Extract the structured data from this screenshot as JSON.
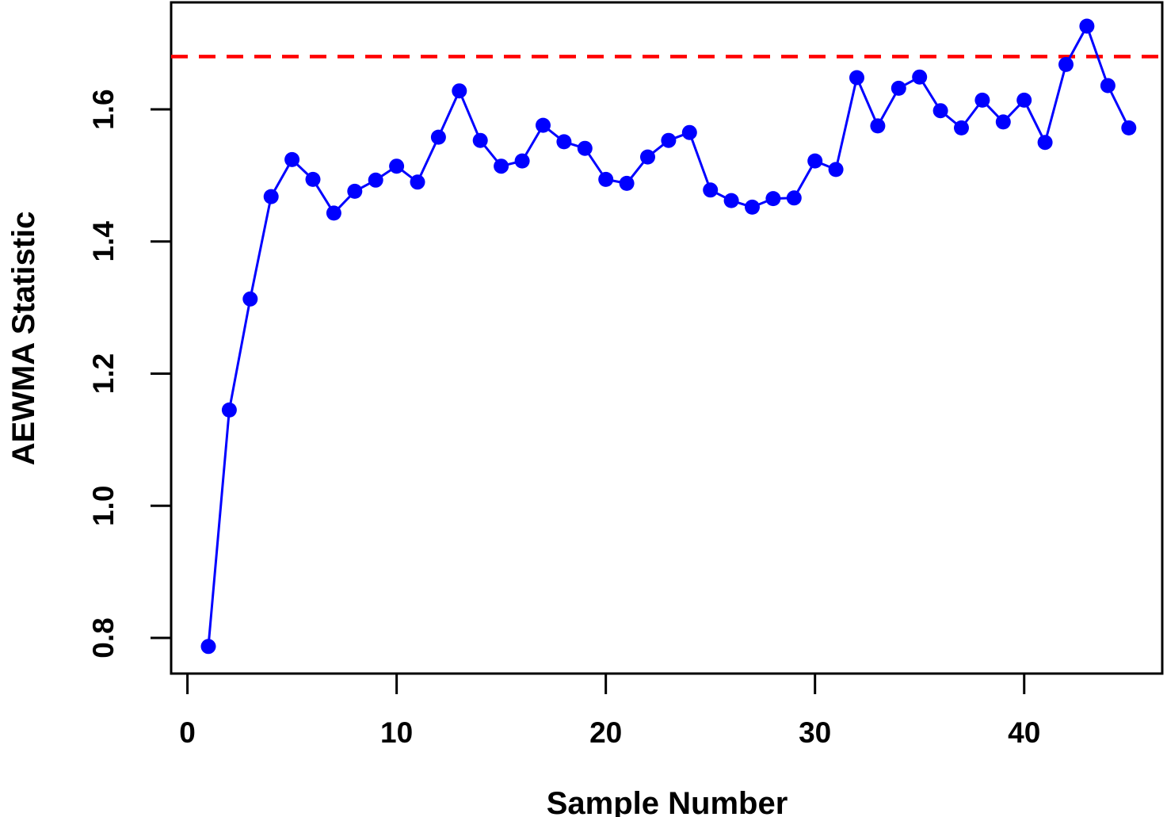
{
  "chart_data": {
    "type": "line",
    "title": "",
    "xlabel": "Sample Number",
    "ylabel": "AEWMA Statistic",
    "x": [
      1,
      2,
      3,
      4,
      5,
      6,
      7,
      8,
      9,
      10,
      11,
      12,
      13,
      14,
      15,
      16,
      17,
      18,
      19,
      20,
      21,
      22,
      23,
      24,
      25,
      26,
      27,
      28,
      29,
      30,
      31,
      32,
      33,
      34,
      35,
      36,
      37,
      38,
      39,
      40,
      41,
      42,
      43,
      44,
      45
    ],
    "series": [
      {
        "name": "AEWMA statistic",
        "values": [
          0.787,
          1.145,
          1.313,
          1.468,
          1.524,
          1.494,
          1.443,
          1.476,
          1.493,
          1.514,
          1.49,
          1.558,
          1.628,
          1.553,
          1.514,
          1.522,
          1.576,
          1.551,
          1.541,
          1.494,
          1.488,
          1.528,
          1.553,
          1.565,
          1.478,
          1.462,
          1.452,
          1.465,
          1.466,
          1.522,
          1.509,
          1.648,
          1.575,
          1.632,
          1.649,
          1.598,
          1.572,
          1.614,
          1.581,
          1.614,
          1.55,
          1.668,
          1.726,
          1.636,
          1.572
        ]
      }
    ],
    "control_limit": {
      "value": 1.68,
      "style": "dashed",
      "color": "#ff0000"
    },
    "xlim": [
      -0.78,
      46.6
    ],
    "ylim": [
      0.746,
      1.762
    ],
    "xticks": {
      "values": [
        0,
        10,
        20,
        30,
        40
      ],
      "labels": [
        "0",
        "10",
        "20",
        "30",
        "40"
      ]
    },
    "yticks": {
      "values": [
        0.8,
        1.0,
        1.2,
        1.4,
        1.6
      ],
      "labels": [
        "0.8",
        "1.0",
        "1.2",
        "1.4",
        "1.6"
      ]
    },
    "grid": false,
    "legend": "none",
    "marker": "filled-circle",
    "colors": {
      "series": "#0000ff",
      "limit": "#ff0000",
      "axis": "#000000",
      "background": "#ffffff"
    }
  }
}
